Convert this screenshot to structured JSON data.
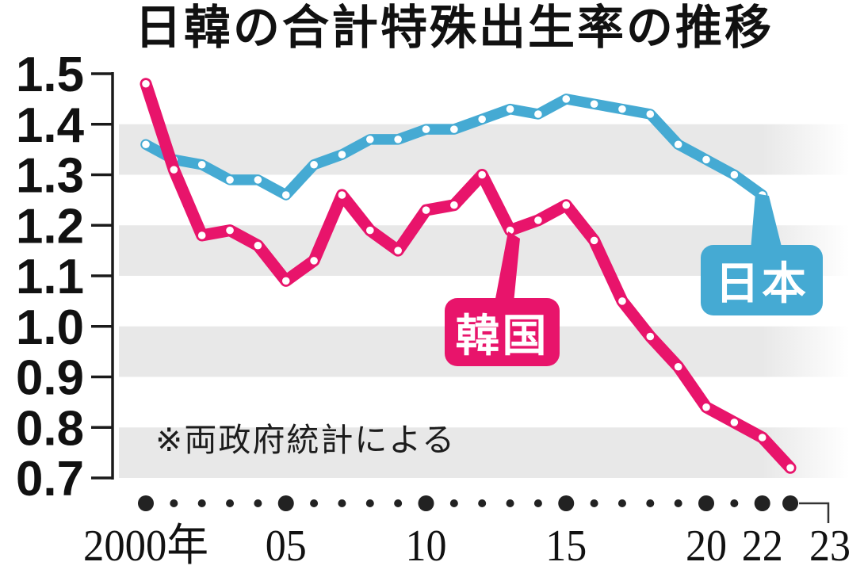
{
  "chart_data": {
    "type": "line",
    "title": "日韓の合計特殊出生率の推移",
    "note": "※両政府統計による",
    "x_axis_unit_suffix": "年",
    "years": [
      2000,
      2001,
      2002,
      2003,
      2004,
      2005,
      2006,
      2007,
      2008,
      2009,
      2010,
      2011,
      2012,
      2013,
      2014,
      2015,
      2016,
      2017,
      2018,
      2019,
      2020,
      2021,
      2022,
      2023
    ],
    "series": [
      {
        "name": "日本",
        "color": "#45aad3",
        "callout_year": 2022,
        "values": [
          1.36,
          1.33,
          1.32,
          1.29,
          1.29,
          1.26,
          1.32,
          1.34,
          1.37,
          1.37,
          1.39,
          1.39,
          1.41,
          1.43,
          1.42,
          1.45,
          1.44,
          1.43,
          1.42,
          1.36,
          1.33,
          1.3,
          1.26,
          null
        ]
      },
      {
        "name": "韓国",
        "color": "#e8146b",
        "callout_year": 2013,
        "values": [
          1.48,
          1.31,
          1.18,
          1.19,
          1.16,
          1.09,
          1.13,
          1.26,
          1.19,
          1.15,
          1.23,
          1.24,
          1.3,
          1.19,
          1.21,
          1.24,
          1.17,
          1.05,
          0.98,
          0.92,
          0.84,
          0.81,
          0.78,
          0.72
        ]
      }
    ],
    "ylim": [
      0.7,
      1.5
    ],
    "y_ticks": [
      "1.5",
      "1.4",
      "1.3",
      "1.2",
      "1.1",
      "1.0",
      "0.9",
      "0.8",
      "0.7"
    ],
    "x_tick_labels": [
      {
        "label": "2000年",
        "year": 2000
      },
      {
        "label": "05",
        "year": 2005
      },
      {
        "label": "10",
        "year": 2010
      },
      {
        "label": "15",
        "year": 2015
      },
      {
        "label": "20",
        "year": 2020
      },
      {
        "label": "22",
        "year": 2022
      },
      {
        "label": "23",
        "year": 2023
      }
    ],
    "emphasized_axis_years": [
      2000,
      2005,
      2010,
      2015,
      2020,
      2022,
      2023
    ],
    "band_color": "#e8e8e8",
    "axis_color": "#1a1a1a",
    "legend_position": "callouts-on-chart",
    "grid": "alternating horizontal bands"
  }
}
